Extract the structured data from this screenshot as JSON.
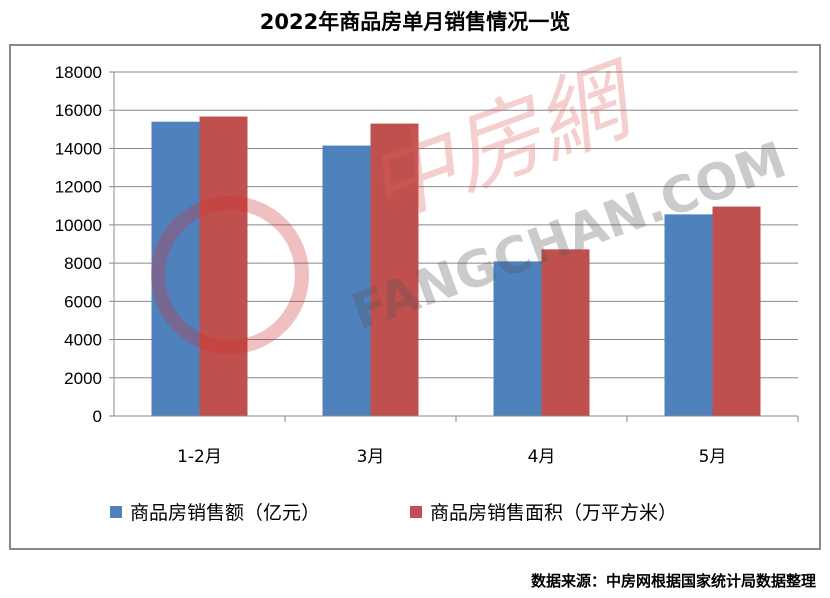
{
  "title": "2022年商品房单月销售情况一览",
  "source": "数据来源：中房网根据国家统计局数据整理",
  "watermark": "中房網 FANGCHAN.COM",
  "chart_data": {
    "type": "bar",
    "title": "2022年商品房单月销售情况一览",
    "categories": [
      "1-2月",
      "3月",
      "4月",
      "5月"
    ],
    "series": [
      {
        "name": "商品房销售额（亿元）",
        "color": "#4F81BD",
        "values": [
          15400,
          14150,
          8090,
          10550
        ]
      },
      {
        "name": "商品房销售面积（万平方米）",
        "color": "#C0504D",
        "values": [
          15670,
          15300,
          8720,
          10960
        ]
      }
    ],
    "ylim": [
      0,
      18000
    ],
    "yticks": [
      "0",
      "2000",
      "4000",
      "6000",
      "8000",
      "10000",
      "12000",
      "14000",
      "16000",
      "18000"
    ],
    "grid": true,
    "legend": "bottom"
  }
}
